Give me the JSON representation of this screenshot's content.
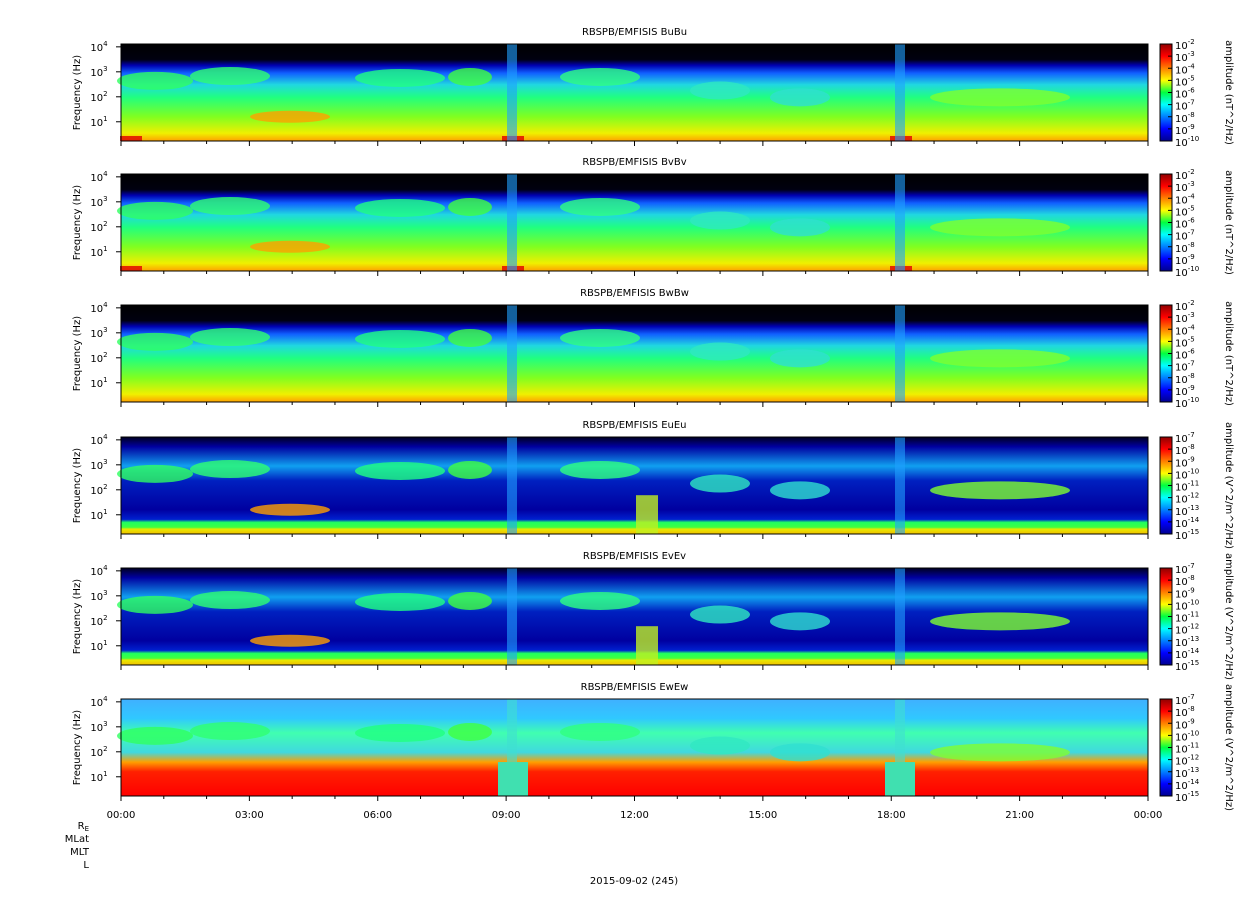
{
  "chart_data": [
    {
      "type": "spectrogram",
      "title": "RBSPB/EMFISIS  BuBu",
      "ylabel": "Frequency (Hz)",
      "ylog": true,
      "ylim": [
        1.7,
        13000
      ],
      "yticks": [
        {
          "value": 10,
          "label": "10^1"
        },
        {
          "value": 100,
          "label": "10^2"
        },
        {
          "value": 1000,
          "label": "10^3"
        },
        {
          "value": 10000,
          "label": "10^4"
        }
      ],
      "colorbar": {
        "label": "amplitude (nT^2/Hz)",
        "clim": [
          1e-10,
          0.01
        ],
        "ticks": [
          {
            "value": 0.01,
            "label": "10^-2"
          },
          {
            "value": 0.001,
            "label": "10^-3"
          },
          {
            "value": 0.0001,
            "label": "10^-4"
          },
          {
            "value": 1e-05,
            "label": "10^-5"
          },
          {
            "value": 1e-06,
            "label": "10^-6"
          },
          {
            "value": 1e-07,
            "label": "10^-7"
          },
          {
            "value": 1e-08,
            "label": "10^-8"
          },
          {
            "value": 1e-09,
            "label": "10^-9"
          },
          {
            "value": 1e-10,
            "label": "10^-10"
          }
        ]
      }
    },
    {
      "type": "spectrogram",
      "title": "RBSPB/EMFISIS  BvBv",
      "ylabel": "Frequency (Hz)",
      "ylog": true,
      "ylim": [
        1.7,
        13000
      ],
      "yticks": [
        {
          "value": 10,
          "label": "10^1"
        },
        {
          "value": 100,
          "label": "10^2"
        },
        {
          "value": 1000,
          "label": "10^3"
        },
        {
          "value": 10000,
          "label": "10^4"
        }
      ],
      "colorbar": {
        "label": "amplitude (nT^2/Hz)",
        "clim": [
          1e-10,
          0.01
        ],
        "ticks": [
          {
            "value": 0.01,
            "label": "10^-2"
          },
          {
            "value": 0.001,
            "label": "10^-3"
          },
          {
            "value": 0.0001,
            "label": "10^-4"
          },
          {
            "value": 1e-05,
            "label": "10^-5"
          },
          {
            "value": 1e-06,
            "label": "10^-6"
          },
          {
            "value": 1e-07,
            "label": "10^-7"
          },
          {
            "value": 1e-08,
            "label": "10^-8"
          },
          {
            "value": 1e-09,
            "label": "10^-9"
          },
          {
            "value": 1e-10,
            "label": "10^-10"
          }
        ]
      }
    },
    {
      "type": "spectrogram",
      "title": "RBSPB/EMFISIS  BwBw",
      "ylabel": "Frequency (Hz)",
      "ylog": true,
      "ylim": [
        1.7,
        13000
      ],
      "yticks": [
        {
          "value": 10,
          "label": "10^1"
        },
        {
          "value": 100,
          "label": "10^2"
        },
        {
          "value": 1000,
          "label": "10^3"
        },
        {
          "value": 10000,
          "label": "10^4"
        }
      ],
      "colorbar": {
        "label": "amplitude (nT^2/Hz)",
        "clim": [
          1e-10,
          0.01
        ],
        "ticks": [
          {
            "value": 0.01,
            "label": "10^-2"
          },
          {
            "value": 0.001,
            "label": "10^-3"
          },
          {
            "value": 0.0001,
            "label": "10^-4"
          },
          {
            "value": 1e-05,
            "label": "10^-5"
          },
          {
            "value": 1e-06,
            "label": "10^-6"
          },
          {
            "value": 1e-07,
            "label": "10^-7"
          },
          {
            "value": 1e-08,
            "label": "10^-8"
          },
          {
            "value": 1e-09,
            "label": "10^-9"
          },
          {
            "value": 1e-10,
            "label": "10^-10"
          }
        ]
      }
    },
    {
      "type": "spectrogram",
      "title": "RBSPB/EMFISIS  EuEu",
      "ylabel": "Frequency (Hz)",
      "ylog": true,
      "ylim": [
        1.7,
        13000
      ],
      "yticks": [
        {
          "value": 10,
          "label": "10^1"
        },
        {
          "value": 100,
          "label": "10^2"
        },
        {
          "value": 1000,
          "label": "10^3"
        },
        {
          "value": 10000,
          "label": "10^4"
        }
      ],
      "colorbar": {
        "label": "amplitude (V^2/m^2/Hz)",
        "clim": [
          1e-15,
          1e-07
        ],
        "ticks": [
          {
            "value": 1e-07,
            "label": "10^-7"
          },
          {
            "value": 1e-08,
            "label": "10^-8"
          },
          {
            "value": 1e-09,
            "label": "10^-9"
          },
          {
            "value": 1e-10,
            "label": "10^-10"
          },
          {
            "value": 1e-11,
            "label": "10^-11"
          },
          {
            "value": 1e-12,
            "label": "10^-12"
          },
          {
            "value": 1e-13,
            "label": "10^-13"
          },
          {
            "value": 1e-14,
            "label": "10^-14"
          },
          {
            "value": 1e-15,
            "label": "10^-15"
          }
        ]
      }
    },
    {
      "type": "spectrogram",
      "title": "RBSPB/EMFISIS  EvEv",
      "ylabel": "Frequency (Hz)",
      "ylog": true,
      "ylim": [
        1.7,
        13000
      ],
      "yticks": [
        {
          "value": 10,
          "label": "10^1"
        },
        {
          "value": 100,
          "label": "10^2"
        },
        {
          "value": 1000,
          "label": "10^3"
        },
        {
          "value": 10000,
          "label": "10^4"
        }
      ],
      "colorbar": {
        "label": "amplitude (V^2/m^2/Hz)",
        "clim": [
          1e-15,
          1e-07
        ],
        "ticks": [
          {
            "value": 1e-07,
            "label": "10^-7"
          },
          {
            "value": 1e-08,
            "label": "10^-8"
          },
          {
            "value": 1e-09,
            "label": "10^-9"
          },
          {
            "value": 1e-10,
            "label": "10^-10"
          },
          {
            "value": 1e-11,
            "label": "10^-11"
          },
          {
            "value": 1e-12,
            "label": "10^-12"
          },
          {
            "value": 1e-13,
            "label": "10^-13"
          },
          {
            "value": 1e-14,
            "label": "10^-14"
          },
          {
            "value": 1e-15,
            "label": "10^-15"
          }
        ]
      }
    },
    {
      "type": "spectrogram",
      "title": "RBSPB/EMFISIS  EwEw",
      "ylabel": "Frequency (Hz)",
      "ylog": true,
      "ylim": [
        1.7,
        13000
      ],
      "yticks": [
        {
          "value": 10,
          "label": "10^1"
        },
        {
          "value": 100,
          "label": "10^2"
        },
        {
          "value": 1000,
          "label": "10^3"
        },
        {
          "value": 10000,
          "label": "10^4"
        }
      ],
      "colorbar": {
        "label": "amplitude (V^2/m^2/Hz)",
        "clim": [
          1e-15,
          1e-07
        ],
        "ticks": [
          {
            "value": 1e-07,
            "label": "10^-7"
          },
          {
            "value": 1e-08,
            "label": "10^-8"
          },
          {
            "value": 1e-09,
            "label": "10^-9"
          },
          {
            "value": 1e-10,
            "label": "10^-10"
          },
          {
            "value": 1e-11,
            "label": "10^-11"
          },
          {
            "value": 1e-12,
            "label": "10^-12"
          },
          {
            "value": 1e-13,
            "label": "10^-13"
          },
          {
            "value": 1e-14,
            "label": "10^-14"
          },
          {
            "value": 1e-15,
            "label": "10^-15"
          }
        ]
      }
    }
  ],
  "time_axis": {
    "xlim": [
      0,
      24
    ],
    "xticks": [
      {
        "value": 0,
        "label": "00:00"
      },
      {
        "value": 3,
        "label": "03:00"
      },
      {
        "value": 6,
        "label": "06:00"
      },
      {
        "value": 9,
        "label": "09:00"
      },
      {
        "value": 12,
        "label": "12:00"
      },
      {
        "value": 15,
        "label": "15:00"
      },
      {
        "value": 18,
        "label": "18:00"
      },
      {
        "value": 21,
        "label": "21:00"
      },
      {
        "value": 24,
        "label": "00:00"
      }
    ],
    "ephemeris_rows": [
      "R_E",
      "MLat",
      "MLT",
      "L"
    ],
    "date": "2015-09-02 (245)"
  }
}
